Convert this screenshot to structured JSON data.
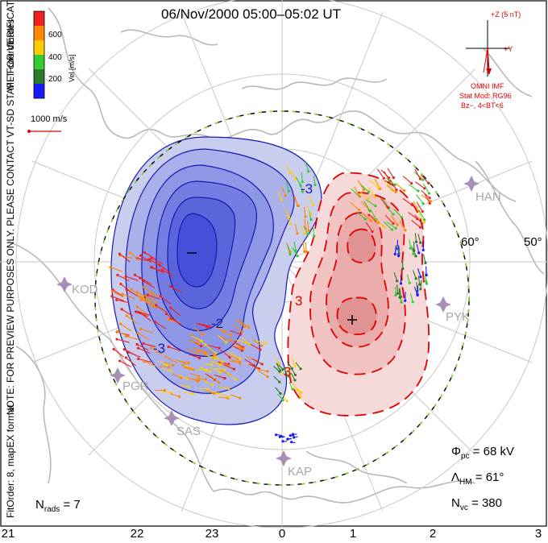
{
  "title": "06/Nov/2000 05:00–05:02 UT",
  "side_labels": {
    "coordinates": "MLT coordinates",
    "preview_note": "NOTE: FOR PREVIEW PURPOSES ONLY. PLEASE CONTACT VT-SD STAFF FOR VERIFICATION.",
    "fit_order": "FitOrder: 8, mapEX format"
  },
  "velocity_scale": {
    "label": "Vel [m/s]",
    "ticks": [
      "600",
      "400",
      "200"
    ],
    "colors": [
      "#1a1aff",
      "#2a7a2a",
      "#33cc33",
      "#ffcc00",
      "#ff8800",
      "#ee2222"
    ],
    "reference_label": "1000 m/s",
    "reference_color": "#e00000"
  },
  "imf_panel": {
    "z_label": "+Z (5 nT)",
    "y_label": "+Y",
    "source": "OMNI IMF",
    "model": "Stat Mod: RG96",
    "condition": "Bz−, 4<BT<6"
  },
  "latitude_labels": [
    "60°",
    "50°"
  ],
  "stations": [
    {
      "code": "HAN",
      "icon": "station-marker-icon"
    },
    {
      "code": "KOD",
      "icon": "station-marker-icon"
    },
    {
      "code": "PYK",
      "icon": "station-marker-icon"
    },
    {
      "code": "PGR",
      "icon": "station-marker-icon"
    },
    {
      "code": "SAS",
      "icon": "station-marker-icon"
    },
    {
      "code": "KAP",
      "icon": "station-marker-icon"
    }
  ],
  "contour_labels": {
    "negative": [
      "-3",
      "-2",
      "-3"
    ],
    "positive": [
      "3",
      "3"
    ]
  },
  "extrema": {
    "min_symbol": "−",
    "max_symbol": "+"
  },
  "stats": {
    "pcp_symbol": "Φ",
    "pcp_sub": "pc",
    "pcp_value": "= 68 kV",
    "hm_symbol": "Λ",
    "hm_sub": "HM",
    "hm_value": "= 61°",
    "nvc_symbol": "N",
    "nvc_sub": "vc",
    "nvc_value": "= 380",
    "nrads_symbol": "N",
    "nrads_sub": "rads",
    "nrads_value": "= 7"
  },
  "mlt_ticks": [
    "21",
    "22",
    "23",
    "0",
    "1",
    "2",
    "3"
  ],
  "colors": {
    "negative_cell": "#1a1aff",
    "positive_cell": "#e00000",
    "coastline": "#b8b8b8",
    "grid": "#c8c8c8",
    "hm_boundary": "#88dd22"
  }
}
